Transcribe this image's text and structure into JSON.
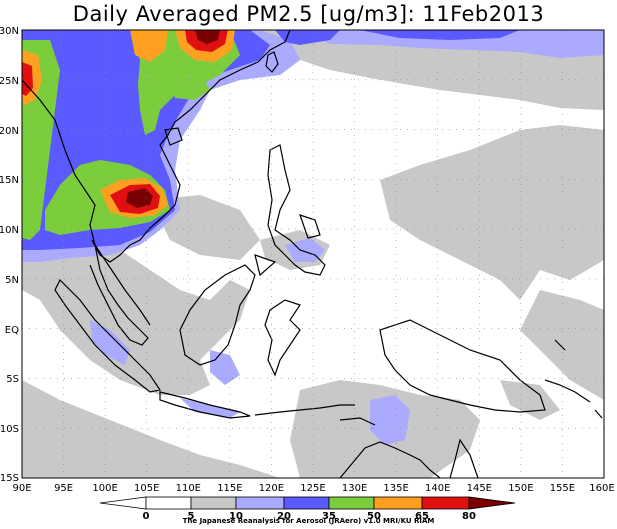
{
  "title": "Daily Averaged PM2.5 [ug/m3]: 11Feb2013",
  "credit": "The Japanese Reanalysis for Aerosol (JRAero) v1.0 MRI/KU RIAM",
  "lon_labels": [
    "90E",
    "95E",
    "100E",
    "105E",
    "110E",
    "115E",
    "120E",
    "125E",
    "130E",
    "135E",
    "140E",
    "145E",
    "150E",
    "155E",
    "160E"
  ],
  "lat_labels": [
    "30N",
    "25N",
    "20N",
    "15N",
    "10N",
    "5N",
    "EQ",
    "5S",
    "10S",
    "15S"
  ],
  "colorbar": {
    "levels": [
      "0",
      "5",
      "10",
      "20",
      "35",
      "50",
      "65",
      "80"
    ],
    "colors": [
      "#ffffff",
      "#c8c8c8",
      "#aaaaff",
      "#5a5aff",
      "#7ccd3c",
      "#ffa020",
      "#e01010",
      "#780000"
    ]
  },
  "map": {
    "lon_range": [
      90,
      160
    ],
    "lat_range": [
      -15,
      30
    ],
    "bin_colors": {
      "0-5": "#ffffff",
      "5-10": "#c8c8c8",
      "10-20": "#aaaaff",
      "20-35": "#5a5aff",
      "35-50": "#7ccd3c",
      "50-65": "#ffa020",
      "65-80": "#e01010",
      "80+": "#780000"
    }
  }
}
